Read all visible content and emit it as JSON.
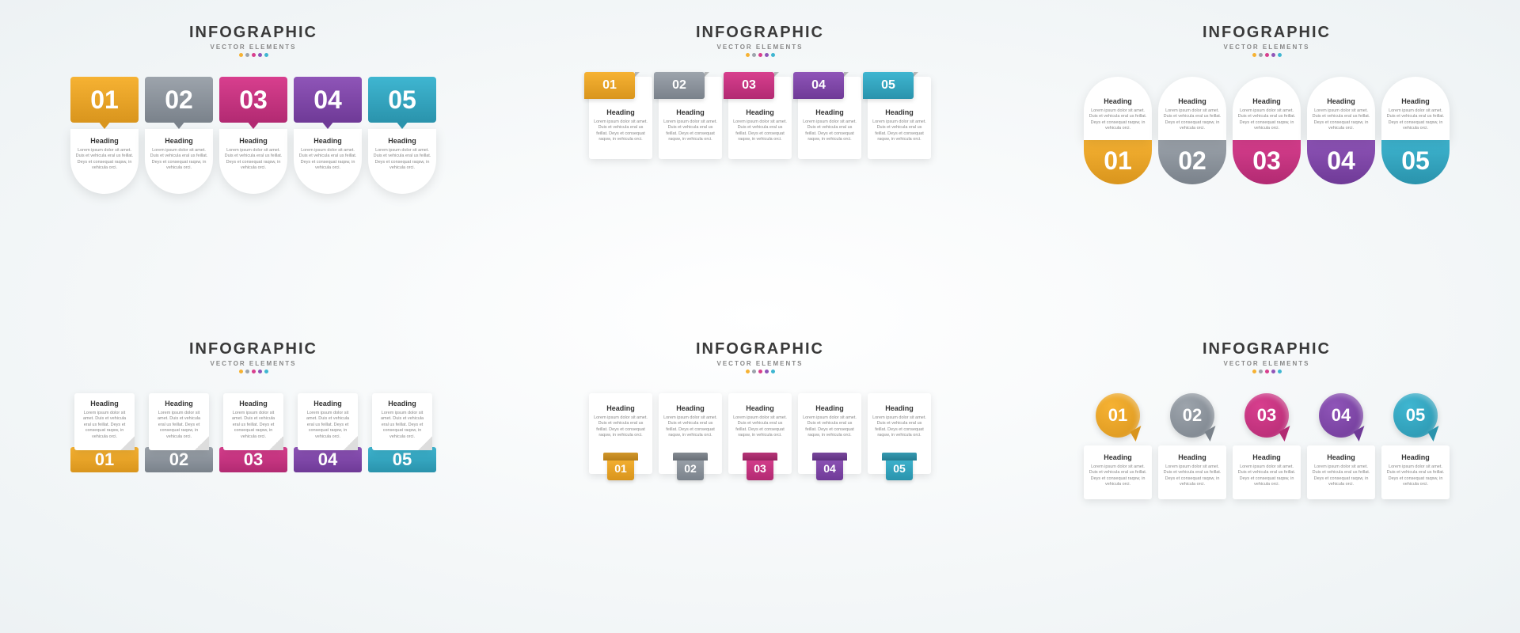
{
  "title": "INFOGRAPHIC",
  "subtitle": "VECTOR ELEMENTS",
  "heading": "Heading",
  "body": "Lorem ipsum dolor sit amet. Duis et vehicula eral us feillat. Deys et consequat raqsw, in vehicula orci.",
  "items": [
    {
      "num": "01",
      "color": "#f6b233",
      "dark": "#d9951d"
    },
    {
      "num": "02",
      "color": "#9da4ac",
      "dark": "#7a828b"
    },
    {
      "num": "03",
      "color": "#d83f8e",
      "dark": "#b22a72"
    },
    {
      "num": "04",
      "color": "#8f55b8",
      "dark": "#6f3a97"
    },
    {
      "num": "05",
      "color": "#3fb6d1",
      "dark": "#2a93ac"
    }
  ],
  "dot_colors": [
    "#f6b233",
    "#9da4ac",
    "#d83f8e",
    "#8f55b8",
    "#3fb6d1"
  ],
  "background": "#edf2f4",
  "title_fontsize": 20,
  "subtitle_fontsize": 8,
  "heading_fontsize": 9,
  "body_fontsize": 5.5,
  "num_fontsize_large": 32,
  "num_fontsize_small": 16,
  "card_bg": "#ffffff",
  "text_color": "#3a3a3a",
  "body_color": "#888888"
}
